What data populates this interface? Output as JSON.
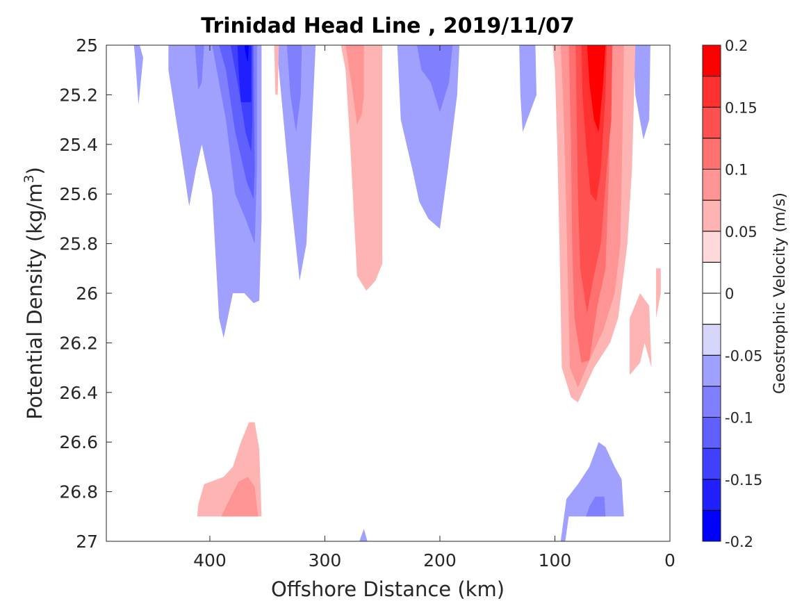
{
  "chart_data": {
    "type": "heatmap",
    "subtype": "filled-contour",
    "title": "Trinidad Head Line , 2019/11/07",
    "xlabel": "Offshore Distance (km)",
    "ylabel": "Potential Density (kg/m",
    "ylabel_sup": "3",
    "ylabel_end": ")",
    "xlim": [
      490,
      0
    ],
    "x_reversed": true,
    "ylim": [
      25,
      27
    ],
    "y_reversed": true,
    "xticks": [
      400,
      300,
      200,
      100,
      0
    ],
    "xtick_labels": [
      "400",
      "300",
      "200",
      "100",
      "0"
    ],
    "yticks": [
      25,
      25.2,
      25.4,
      25.6,
      25.8,
      26,
      26.2,
      26.4,
      26.6,
      26.8,
      27
    ],
    "ytick_labels": [
      "25",
      "25.2",
      "25.4",
      "25.6",
      "25.8",
      "26",
      "26.2",
      "26.4",
      "26.6",
      "26.8",
      "27"
    ],
    "colorbar": {
      "label": "Geostrophic Velocity (m/s)",
      "range": [
        -0.2,
        0.2
      ],
      "levels": [
        -0.2,
        -0.175,
        -0.15,
        -0.125,
        -0.1,
        -0.075,
        -0.05,
        -0.025,
        0,
        0.025,
        0.05,
        0.075,
        0.1,
        0.125,
        0.15,
        0.175,
        0.2
      ],
      "level_colors": [
        "#0000ff",
        "#2020ff",
        "#4040ff",
        "#6060ff",
        "#8080ff",
        "#a0a0ff",
        "#d6d6fb",
        "#ffffff",
        "#ffffff",
        "#fdd9d9",
        "#ffb4b4",
        "#ff9494",
        "#ff7070",
        "#ff5050",
        "#ff3030",
        "#ff0000"
      ],
      "ticks": [
        0.2,
        0.15,
        0.1,
        0.05,
        0,
        -0.05,
        -0.1,
        -0.15,
        -0.2
      ],
      "tick_labels": [
        "0.2",
        "0.15",
        "0.1",
        "0.05",
        "0",
        "-0.05",
        "-0.1",
        "-0.15",
        "-0.2"
      ]
    },
    "regions": [
      {
        "name": "neg-1",
        "level": -0.05,
        "points": [
          [
            474,
            25
          ],
          [
            466,
            25
          ],
          [
            465,
            25.05
          ],
          [
            462,
            25.24
          ],
          [
            458,
            25.05
          ],
          [
            461,
            25
          ]
        ]
      },
      {
        "name": "neg-1",
        "level": -0.05,
        "points": [
          [
            436,
            25
          ],
          [
            355,
            25
          ],
          [
            355,
            25.7
          ],
          [
            357,
            26.03
          ],
          [
            362,
            26.04
          ],
          [
            370,
            26
          ],
          [
            380,
            26
          ],
          [
            388,
            26.18
          ],
          [
            392,
            26.1
          ],
          [
            398,
            25.6
          ],
          [
            407,
            25.4
          ],
          [
            412,
            25.5
          ],
          [
            418,
            25.65
          ],
          [
            426,
            25.4
          ],
          [
            436,
            25.1
          ]
        ]
      },
      {
        "name": "neg-1",
        "level": -0.05,
        "points": [
          [
            342,
            25
          ],
          [
            308,
            25
          ],
          [
            310,
            25.2
          ],
          [
            316,
            25.8
          ],
          [
            322,
            25.95
          ],
          [
            330,
            25.6
          ],
          [
            336,
            25.3
          ]
        ]
      },
      {
        "name": "neg-1",
        "level": -0.05,
        "points": [
          [
            237,
            25
          ],
          [
            183,
            25
          ],
          [
            185,
            25.2
          ],
          [
            193,
            25.5
          ],
          [
            200,
            25.74
          ],
          [
            210,
            25.7
          ],
          [
            218,
            25.63
          ],
          [
            224,
            25.5
          ],
          [
            234,
            25.3
          ]
        ]
      },
      {
        "name": "neg-1",
        "level": -0.05,
        "points": [
          [
            131,
            25
          ],
          [
            117,
            25
          ],
          [
            116,
            25.2
          ],
          [
            128,
            25.35
          ],
          [
            130,
            25.2
          ]
        ]
      },
      {
        "name": "neg-1",
        "level": -0.05,
        "points": [
          [
            32,
            25
          ],
          [
            17,
            25
          ],
          [
            18,
            25.3
          ],
          [
            23,
            25.38
          ],
          [
            30,
            25.2
          ]
        ]
      },
      {
        "name": "neg-2",
        "level": -0.075,
        "points": [
          [
            413,
            25
          ],
          [
            405,
            25
          ],
          [
            407,
            25.15
          ],
          [
            410,
            25.18
          ]
        ]
      },
      {
        "name": "neg-2",
        "level": -0.075,
        "points": [
          [
            398,
            25
          ],
          [
            359,
            25
          ],
          [
            359,
            25.5
          ],
          [
            361,
            25.8
          ],
          [
            369,
            25.7
          ],
          [
            378,
            25.6
          ],
          [
            386,
            25.3
          ],
          [
            394,
            25.1
          ]
        ]
      },
      {
        "name": "neg-2",
        "level": -0.075,
        "points": [
          [
            333,
            25
          ],
          [
            320,
            25
          ],
          [
            321,
            25.2
          ],
          [
            325,
            25.35
          ],
          [
            330,
            25.2
          ]
        ]
      },
      {
        "name": "neg-2",
        "level": -0.075,
        "points": [
          [
            220,
            25
          ],
          [
            189,
            25
          ],
          [
            192,
            25.15
          ],
          [
            200,
            25.27
          ],
          [
            208,
            25.15
          ],
          [
            216,
            25.1
          ]
        ]
      },
      {
        "name": "neg-3",
        "level": -0.1,
        "points": [
          [
            392,
            25
          ],
          [
            362,
            25
          ],
          [
            361,
            25.5
          ],
          [
            362,
            25.62
          ],
          [
            368,
            25.55
          ],
          [
            378,
            25.35
          ],
          [
            386,
            25.1
          ]
        ]
      },
      {
        "name": "neg-4",
        "level": -0.125,
        "points": [
          [
            382,
            25
          ],
          [
            363,
            25
          ],
          [
            363,
            25.3
          ],
          [
            364,
            25.43
          ],
          [
            369,
            25.35
          ],
          [
            374,
            25.2
          ],
          [
            380,
            25.05
          ]
        ]
      },
      {
        "name": "neg-5",
        "level": -0.15,
        "points": [
          [
            376,
            25
          ],
          [
            364,
            25
          ],
          [
            364,
            25.23
          ],
          [
            373,
            25.23
          ],
          [
            375,
            25.1
          ]
        ]
      },
      {
        "name": "neg-6",
        "level": -0.175,
        "points": [
          [
            370,
            25
          ],
          [
            366,
            25
          ],
          [
            367,
            25.07
          ],
          [
            369,
            25.03
          ]
        ]
      },
      {
        "name": "neg-1",
        "level": -0.05,
        "points": [
          [
            95,
            27
          ],
          [
            90,
            26.83
          ],
          [
            80,
            26.77
          ],
          [
            70,
            26.7
          ],
          [
            62,
            26.6
          ],
          [
            56,
            26.62
          ],
          [
            48,
            26.7
          ],
          [
            42,
            26.75
          ],
          [
            40,
            26.9
          ],
          [
            45,
            26.9
          ],
          [
            60,
            26.9
          ],
          [
            80,
            26.9
          ],
          [
            88,
            26.9
          ],
          [
            91,
            27
          ]
        ]
      },
      {
        "name": "neg-2",
        "level": -0.075,
        "points": [
          [
            73,
            26.9
          ],
          [
            56,
            26.9
          ],
          [
            57,
            26.82
          ],
          [
            65,
            26.82
          ],
          [
            70,
            26.86
          ]
        ]
      },
      {
        "name": "neg-1",
        "level": -0.05,
        "points": [
          [
            270,
            27
          ],
          [
            263,
            27
          ],
          [
            266,
            26.95
          ]
        ]
      },
      {
        "name": "pos-1",
        "level": 0.05,
        "points": [
          [
            286,
            25
          ],
          [
            250,
            25
          ],
          [
            250,
            25.88
          ],
          [
            256,
            25.95
          ],
          [
            264,
            25.99
          ],
          [
            272,
            25.93
          ],
          [
            278,
            25.4
          ],
          [
            282,
            25.1
          ]
        ]
      },
      {
        "name": "pos-1",
        "level": 0.05,
        "points": [
          [
            344,
            25
          ],
          [
            340,
            25
          ],
          [
            341,
            25.2
          ],
          [
            343,
            25.2
          ]
        ]
      },
      {
        "name": "pos-2",
        "level": 0.075,
        "points": [
          [
            282,
            25
          ],
          [
            266,
            25
          ],
          [
            266,
            25.2
          ],
          [
            268,
            25.28
          ],
          [
            272,
            25.32
          ],
          [
            277,
            25.15
          ]
        ]
      },
      {
        "name": "pos-1",
        "level": 0.05,
        "points": [
          [
            102,
            25
          ],
          [
            30,
            25
          ],
          [
            33,
            25.5
          ],
          [
            37,
            25.8
          ],
          [
            45,
            26.1
          ],
          [
            52,
            26.2
          ],
          [
            66,
            26.3
          ],
          [
            80,
            26.44
          ],
          [
            86,
            26.42
          ],
          [
            94,
            26.3
          ],
          [
            96,
            25.8
          ],
          [
            98,
            25.4
          ],
          [
            100,
            25.1
          ]
        ]
      },
      {
        "name": "pos-2",
        "level": 0.075,
        "points": [
          [
            95,
            25
          ],
          [
            40,
            25
          ],
          [
            41,
            25.3
          ],
          [
            43,
            25.8
          ],
          [
            48,
            26.0
          ],
          [
            58,
            26.15
          ],
          [
            68,
            26.25
          ],
          [
            80,
            26.38
          ],
          [
            87,
            26.3
          ],
          [
            89,
            25.9
          ],
          [
            91,
            25.5
          ],
          [
            93,
            25.2
          ]
        ]
      },
      {
        "name": "pos-3",
        "level": 0.1,
        "points": [
          [
            88,
            25
          ],
          [
            52,
            25
          ],
          [
            53,
            25.5
          ],
          [
            56,
            25.9
          ],
          [
            63,
            26.05
          ],
          [
            70,
            26.27
          ],
          [
            77,
            26.28
          ],
          [
            83,
            26.1
          ],
          [
            85,
            25.8
          ],
          [
            86,
            25.4
          ]
        ]
      },
      {
        "name": "pos-4",
        "level": 0.125,
        "points": [
          [
            82,
            25
          ],
          [
            50,
            25
          ],
          [
            51,
            25.3
          ],
          [
            55,
            25.5
          ],
          [
            60,
            25.8
          ],
          [
            67,
            25.95
          ],
          [
            72,
            26.08
          ],
          [
            78,
            25.9
          ],
          [
            80,
            25.6
          ],
          [
            81,
            25.3
          ]
        ]
      },
      {
        "name": "pos-5",
        "level": 0.15,
        "points": [
          [
            77,
            25
          ],
          [
            55,
            25
          ],
          [
            56,
            25.2
          ],
          [
            60,
            25.5
          ],
          [
            64,
            25.63
          ],
          [
            69,
            25.6
          ],
          [
            73,
            25.4
          ],
          [
            76,
            25.2
          ]
        ]
      },
      {
        "name": "pos-6",
        "level": 0.175,
        "points": [
          [
            72,
            25
          ],
          [
            56,
            25
          ],
          [
            58,
            25.15
          ],
          [
            62,
            25.35
          ],
          [
            66,
            25.3
          ],
          [
            70,
            25.15
          ]
        ]
      },
      {
        "name": "pos-7",
        "level": 0.2,
        "points": [
          [
            67,
            25
          ],
          [
            59,
            25
          ],
          [
            61,
            25.07
          ],
          [
            65,
            25.06
          ]
        ]
      },
      {
        "name": "pos-1",
        "level": 0.05,
        "points": [
          [
            12,
            25.9
          ],
          [
            8,
            25.9
          ],
          [
            8,
            26.0
          ],
          [
            12,
            26.1
          ]
        ]
      },
      {
        "name": "pos-1",
        "level": 0.05,
        "points": [
          [
            35,
            26.1
          ],
          [
            26,
            26.0
          ],
          [
            18,
            26.05
          ],
          [
            16,
            26.3
          ],
          [
            22,
            26.2
          ],
          [
            26,
            26.28
          ],
          [
            35,
            26.33
          ]
        ]
      },
      {
        "name": "pos-1",
        "level": 0.05,
        "points": [
          [
            411,
            26.9
          ],
          [
            355,
            26.9
          ],
          [
            357,
            26.63
          ],
          [
            361,
            26.52
          ],
          [
            366,
            26.52
          ],
          [
            373,
            26.6
          ],
          [
            380,
            26.7
          ],
          [
            388,
            26.74
          ],
          [
            405,
            26.77
          ],
          [
            410,
            26.85
          ]
        ]
      },
      {
        "name": "pos-2",
        "level": 0.075,
        "points": [
          [
            390,
            26.9
          ],
          [
            358,
            26.9
          ],
          [
            361,
            26.78
          ],
          [
            367,
            26.74
          ],
          [
            375,
            26.76
          ],
          [
            385,
            26.85
          ]
        ]
      }
    ]
  }
}
